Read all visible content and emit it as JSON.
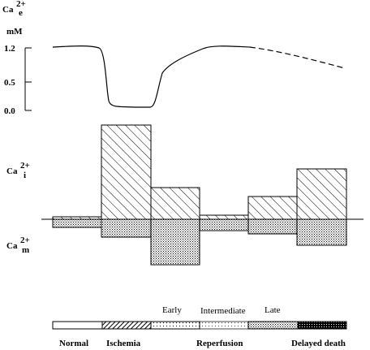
{
  "labels": {
    "ca_e": "Ca",
    "ca_e_sup": "2+",
    "ca_e_sub": "e",
    "unit": "mM",
    "tick_1_2": "1.2",
    "tick_0_5": "0.5",
    "tick_0_0": "0.0",
    "ca_i": "Ca",
    "ca_i_sup": "2+",
    "ca_i_sub": "i",
    "ca_m": "Ca",
    "ca_m_sup": "2+",
    "ca_m_sub": "m"
  },
  "phases": {
    "early": "Early",
    "intermediate": "Intermediate",
    "late": "Late",
    "normal": "Normal",
    "ischemia": "Ischemia",
    "reperfusion": "Reperfusion",
    "delayed_death": "Delayed death"
  }
}
